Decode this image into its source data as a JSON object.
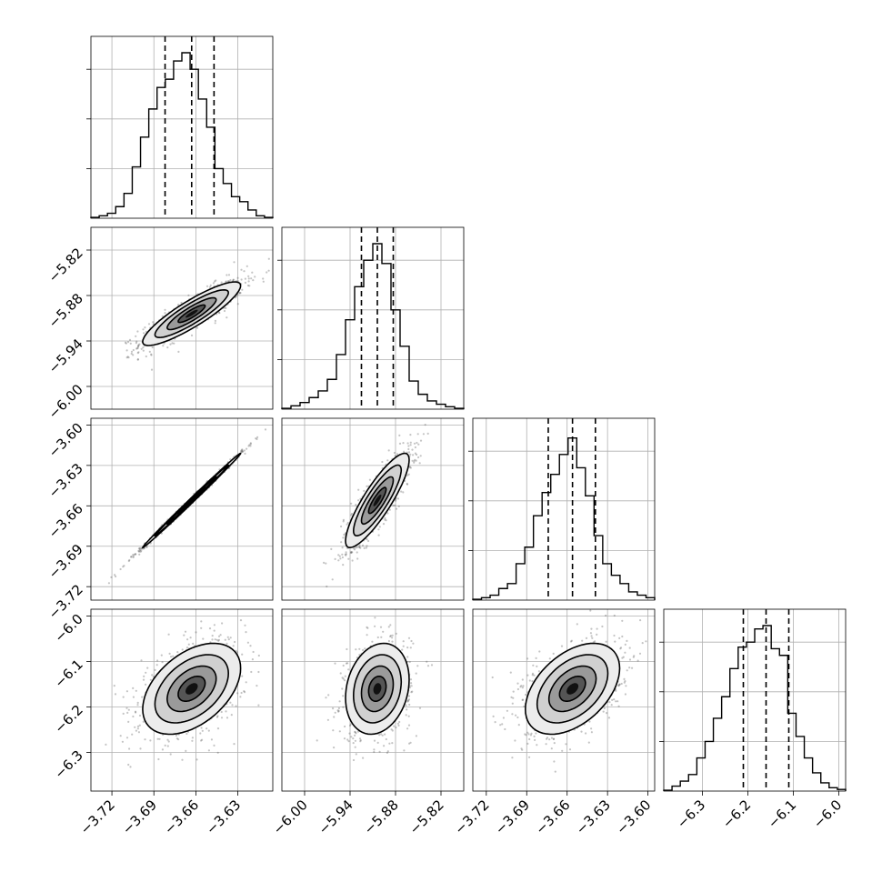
{
  "chart_data": {
    "type": "corner",
    "description_free": true,
    "grid": true,
    "n_params": 4,
    "params": [
      {
        "range": [
          -3.735,
          -3.605
        ],
        "ticks": [
          -3.72,
          -3.69,
          -3.66,
          -3.63
        ],
        "tick_labels": [
          "−3.72",
          "−3.69",
          "−3.66",
          "−3.63"
        ],
        "quantiles": [
          -3.682,
          -3.663,
          -3.647
        ],
        "hist": [
          0.005,
          0.015,
          0.03,
          0.07,
          0.15,
          0.31,
          0.49,
          0.66,
          0.79,
          0.84,
          0.95,
          1.0,
          0.9,
          0.72,
          0.55,
          0.3,
          0.21,
          0.13,
          0.1,
          0.05,
          0.015,
          0.005
        ]
      },
      {
        "range": [
          -6.03,
          -5.79
        ],
        "ticks": [
          -6.0,
          -5.94,
          -5.88,
          -5.82
        ],
        "tick_labels": [
          "−6.00",
          "−5.94",
          "−5.88",
          "−5.82"
        ],
        "quantiles": [
          -5.925,
          -5.904,
          -5.883
        ],
        "hist": [
          0.005,
          0.02,
          0.04,
          0.07,
          0.11,
          0.18,
          0.33,
          0.54,
          0.74,
          0.9,
          1.0,
          0.88,
          0.6,
          0.38,
          0.17,
          0.09,
          0.05,
          0.03,
          0.015,
          0.005
        ]
      },
      {
        "range": [
          -3.73,
          -3.595
        ],
        "ticks": [
          -3.72,
          -3.69,
          -3.66,
          -3.63,
          -3.6
        ],
        "tick_labels": [
          "−3.72",
          "−3.69",
          "−3.66",
          "−3.63",
          "−3.60"
        ],
        "quantiles": [
          -3.674,
          -3.656,
          -3.639
        ],
        "hist": [
          0.005,
          0.015,
          0.03,
          0.07,
          0.1,
          0.22,
          0.32,
          0.51,
          0.65,
          0.76,
          0.88,
          0.98,
          0.8,
          0.63,
          0.39,
          0.22,
          0.15,
          0.1,
          0.05,
          0.03,
          0.015
        ]
      },
      {
        "range": [
          -6.385,
          -5.985
        ],
        "ticks": [
          -6.3,
          -6.2,
          -6.1,
          -6.0
        ],
        "tick_labels": [
          "−6.3",
          "−6.2",
          "−6.1",
          "−6.0"
        ],
        "quantiles": [
          -6.21,
          -6.16,
          -6.11
        ],
        "hist": [
          0.005,
          0.03,
          0.06,
          0.1,
          0.2,
          0.3,
          0.44,
          0.57,
          0.74,
          0.87,
          0.9,
          0.98,
          1.0,
          0.86,
          0.82,
          0.47,
          0.33,
          0.2,
          0.11,
          0.05,
          0.02,
          0.01
        ]
      }
    ],
    "pairs": [
      {
        "x": 0,
        "y": 1,
        "corr": 0.88,
        "n_points": 900
      },
      {
        "x": 0,
        "y": 2,
        "corr": 0.998,
        "n_points": 900
      },
      {
        "x": 1,
        "y": 2,
        "corr": 0.86,
        "n_points": 900
      },
      {
        "x": 0,
        "y": 3,
        "corr": 0.45,
        "n_points": 900
      },
      {
        "x": 1,
        "y": 3,
        "corr": 0.2,
        "n_points": 900
      },
      {
        "x": 2,
        "y": 3,
        "corr": 0.45,
        "n_points": 900
      }
    ]
  }
}
